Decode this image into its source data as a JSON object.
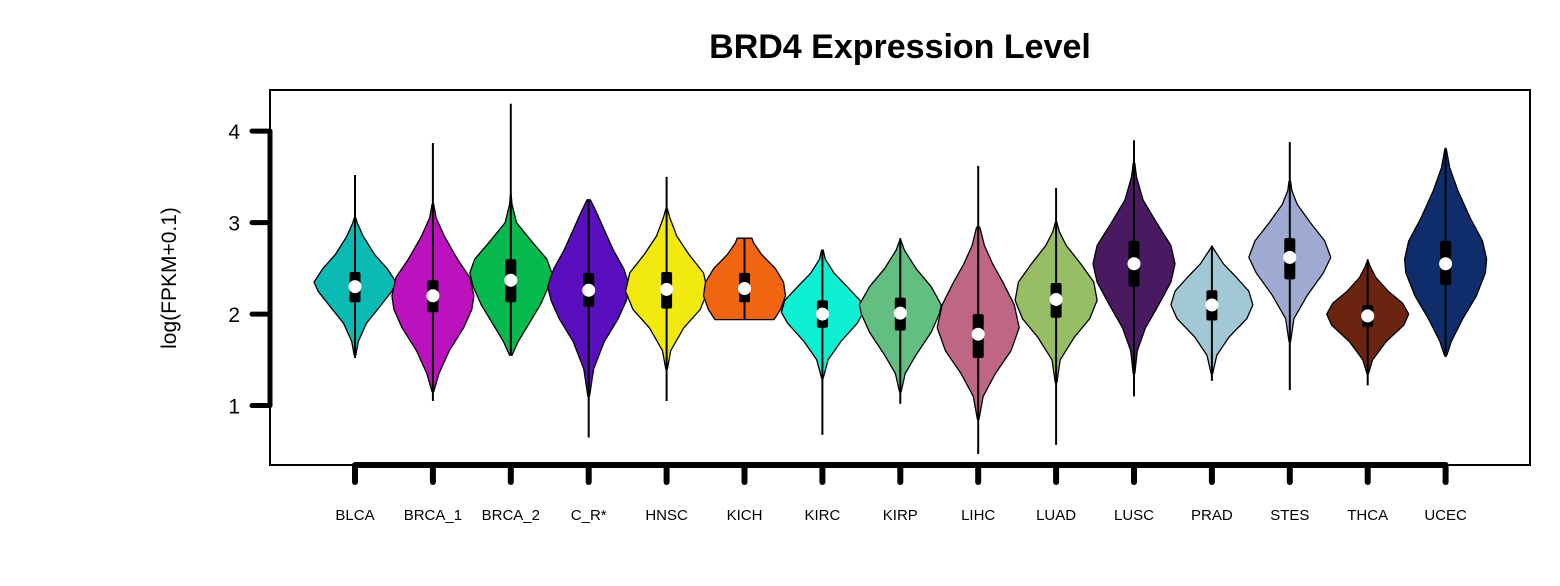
{
  "chart_data": {
    "type": "violin",
    "title": "BRD4 Expression Level",
    "xlabel": "",
    "ylabel": "log(FPKM+0.1)",
    "ylim": [
      0.35,
      4.45
    ],
    "yticks": [
      1,
      2,
      3,
      4
    ],
    "grid": false,
    "categories": [
      "BLCA",
      "BRCA_1",
      "BRCA_2",
      "C_R*",
      "HNSC",
      "KICH",
      "KIRC",
      "KIRP",
      "LIHC",
      "LUAD",
      "LUSC",
      "PRAD",
      "STES",
      "THCA",
      "UCEC"
    ],
    "series": [
      {
        "category": "BLCA",
        "color": "#0BBAB5",
        "min": 1.52,
        "max": 3.52,
        "q1": 2.13,
        "median": 2.3,
        "q3": 2.46,
        "violin": [
          [
            1.55,
            0.02
          ],
          [
            1.7,
            0.08
          ],
          [
            1.9,
            0.28
          ],
          [
            2.1,
            0.64
          ],
          [
            2.25,
            0.9
          ],
          [
            2.35,
            1.0
          ],
          [
            2.5,
            0.78
          ],
          [
            2.65,
            0.48
          ],
          [
            2.85,
            0.2
          ],
          [
            3.0,
            0.05
          ],
          [
            3.05,
            0.02
          ]
        ]
      },
      {
        "category": "BRCA_1",
        "color": "#BB12BE",
        "min": 1.05,
        "max": 3.87,
        "q1": 2.02,
        "median": 2.2,
        "q3": 2.37,
        "violin": [
          [
            1.15,
            0.02
          ],
          [
            1.35,
            0.15
          ],
          [
            1.6,
            0.4
          ],
          [
            1.85,
            0.75
          ],
          [
            2.05,
            0.95
          ],
          [
            2.2,
            1.0
          ],
          [
            2.4,
            0.9
          ],
          [
            2.6,
            0.6
          ],
          [
            2.85,
            0.28
          ],
          [
            3.05,
            0.08
          ],
          [
            3.2,
            0.02
          ]
        ]
      },
      {
        "category": "BRCA_2",
        "color": "#06B94F",
        "min": 1.55,
        "max": 4.3,
        "q1": 2.13,
        "median": 2.37,
        "q3": 2.6,
        "violin": [
          [
            1.55,
            0.03
          ],
          [
            1.7,
            0.18
          ],
          [
            1.9,
            0.45
          ],
          [
            2.1,
            0.72
          ],
          [
            2.3,
            0.92
          ],
          [
            2.45,
            1.0
          ],
          [
            2.6,
            0.88
          ],
          [
            2.8,
            0.5
          ],
          [
            3.0,
            0.14
          ],
          [
            3.2,
            0.03
          ],
          [
            3.3,
            0.01
          ]
        ]
      },
      {
        "category": "C_R*",
        "color": "#5A0FBE",
        "min": 0.65,
        "max": 3.25,
        "q1": 2.08,
        "median": 2.26,
        "q3": 2.45,
        "violin": [
          [
            1.1,
            0.02
          ],
          [
            1.4,
            0.12
          ],
          [
            1.7,
            0.38
          ],
          [
            1.95,
            0.72
          ],
          [
            2.15,
            0.92
          ],
          [
            2.3,
            1.0
          ],
          [
            2.5,
            0.85
          ],
          [
            2.7,
            0.6
          ],
          [
            2.95,
            0.35
          ],
          [
            3.15,
            0.15
          ],
          [
            3.25,
            0.04
          ]
        ]
      },
      {
        "category": "HNSC",
        "color": "#F2EA0E",
        "min": 1.05,
        "max": 3.5,
        "q1": 2.06,
        "median": 2.27,
        "q3": 2.46,
        "violin": [
          [
            1.4,
            0.02
          ],
          [
            1.6,
            0.1
          ],
          [
            1.85,
            0.42
          ],
          [
            2.05,
            0.82
          ],
          [
            2.25,
            1.0
          ],
          [
            2.45,
            0.9
          ],
          [
            2.65,
            0.55
          ],
          [
            2.85,
            0.25
          ],
          [
            3.05,
            0.08
          ],
          [
            3.15,
            0.02
          ]
        ]
      },
      {
        "category": "KICH",
        "color": "#F06412",
        "min": 1.94,
        "max": 2.83,
        "q1": 2.13,
        "median": 2.28,
        "q3": 2.45,
        "violin": [
          [
            1.94,
            0.72
          ],
          [
            2.05,
            0.88
          ],
          [
            2.2,
            1.0
          ],
          [
            2.35,
            0.95
          ],
          [
            2.5,
            0.75
          ],
          [
            2.65,
            0.42
          ],
          [
            2.78,
            0.22
          ],
          [
            2.83,
            0.18
          ]
        ]
      },
      {
        "category": "KIRC",
        "color": "#0EF0D2",
        "min": 0.68,
        "max": 2.7,
        "q1": 1.85,
        "median": 2.0,
        "q3": 2.15,
        "violin": [
          [
            1.3,
            0.02
          ],
          [
            1.5,
            0.14
          ],
          [
            1.7,
            0.45
          ],
          [
            1.9,
            0.85
          ],
          [
            2.02,
            1.0
          ],
          [
            2.15,
            0.92
          ],
          [
            2.3,
            0.6
          ],
          [
            2.45,
            0.28
          ],
          [
            2.6,
            0.07
          ],
          [
            2.7,
            0.02
          ]
        ]
      },
      {
        "category": "KIRP",
        "color": "#63BE82",
        "min": 1.02,
        "max": 2.83,
        "q1": 1.82,
        "median": 2.01,
        "q3": 2.18,
        "violin": [
          [
            1.15,
            0.02
          ],
          [
            1.35,
            0.12
          ],
          [
            1.55,
            0.38
          ],
          [
            1.8,
            0.75
          ],
          [
            2.0,
            0.95
          ],
          [
            2.1,
            1.0
          ],
          [
            2.3,
            0.75
          ],
          [
            2.5,
            0.38
          ],
          [
            2.7,
            0.1
          ],
          [
            2.8,
            0.02
          ]
        ]
      },
      {
        "category": "LIHC",
        "color": "#BE6684",
        "min": 0.47,
        "max": 3.62,
        "q1": 1.52,
        "median": 1.78,
        "q3": 2.0,
        "violin": [
          [
            0.85,
            0.02
          ],
          [
            1.1,
            0.12
          ],
          [
            1.35,
            0.42
          ],
          [
            1.6,
            0.8
          ],
          [
            1.85,
            1.0
          ],
          [
            2.1,
            0.88
          ],
          [
            2.35,
            0.6
          ],
          [
            2.55,
            0.35
          ],
          [
            2.75,
            0.15
          ],
          [
            2.95,
            0.04
          ]
        ]
      },
      {
        "category": "LUAD",
        "color": "#97BE64",
        "min": 0.57,
        "max": 3.38,
        "q1": 1.96,
        "median": 2.16,
        "q3": 2.34,
        "violin": [
          [
            1.25,
            0.02
          ],
          [
            1.5,
            0.1
          ],
          [
            1.75,
            0.45
          ],
          [
            1.95,
            0.82
          ],
          [
            2.15,
            1.0
          ],
          [
            2.35,
            0.92
          ],
          [
            2.55,
            0.6
          ],
          [
            2.75,
            0.25
          ],
          [
            2.9,
            0.08
          ],
          [
            3.0,
            0.02
          ]
        ]
      },
      {
        "category": "LUSC",
        "color": "#491A62",
        "min": 1.1,
        "max": 3.9,
        "q1": 2.3,
        "median": 2.55,
        "q3": 2.8,
        "violin": [
          [
            1.35,
            0.02
          ],
          [
            1.6,
            0.08
          ],
          [
            1.85,
            0.28
          ],
          [
            2.1,
            0.6
          ],
          [
            2.35,
            0.9
          ],
          [
            2.55,
            1.0
          ],
          [
            2.75,
            0.9
          ],
          [
            3.0,
            0.55
          ],
          [
            3.25,
            0.22
          ],
          [
            3.5,
            0.06
          ],
          [
            3.65,
            0.02
          ]
        ]
      },
      {
        "category": "PRAD",
        "color": "#A2C8D6",
        "min": 1.27,
        "max": 2.75,
        "q1": 1.93,
        "median": 2.1,
        "q3": 2.26,
        "violin": [
          [
            1.35,
            0.02
          ],
          [
            1.55,
            0.12
          ],
          [
            1.75,
            0.42
          ],
          [
            1.95,
            0.85
          ],
          [
            2.1,
            1.0
          ],
          [
            2.25,
            0.9
          ],
          [
            2.4,
            0.6
          ],
          [
            2.55,
            0.28
          ],
          [
            2.7,
            0.06
          ],
          [
            2.73,
            0.02
          ]
        ]
      },
      {
        "category": "STES",
        "color": "#9EAAD2",
        "min": 1.17,
        "max": 3.88,
        "q1": 2.38,
        "median": 2.62,
        "q3": 2.83,
        "violin": [
          [
            1.7,
            0.02
          ],
          [
            1.95,
            0.1
          ],
          [
            2.2,
            0.42
          ],
          [
            2.45,
            0.82
          ],
          [
            2.62,
            1.0
          ],
          [
            2.8,
            0.85
          ],
          [
            3.0,
            0.5
          ],
          [
            3.2,
            0.18
          ],
          [
            3.35,
            0.05
          ],
          [
            3.45,
            0.02
          ]
        ]
      },
      {
        "category": "THCA",
        "color": "#6B2410",
        "min": 1.22,
        "max": 2.6,
        "q1": 1.86,
        "median": 1.98,
        "q3": 2.1,
        "violin": [
          [
            1.35,
            0.02
          ],
          [
            1.5,
            0.12
          ],
          [
            1.7,
            0.45
          ],
          [
            1.88,
            0.88
          ],
          [
            2.0,
            1.0
          ],
          [
            2.12,
            0.85
          ],
          [
            2.25,
            0.5
          ],
          [
            2.4,
            0.2
          ],
          [
            2.52,
            0.06
          ],
          [
            2.57,
            0.02
          ]
        ]
      },
      {
        "category": "UCEC",
        "color": "#0F2C6B",
        "min": 1.53,
        "max": 3.82,
        "q1": 2.32,
        "median": 2.55,
        "q3": 2.8,
        "violin": [
          [
            1.55,
            0.03
          ],
          [
            1.7,
            0.14
          ],
          [
            1.95,
            0.42
          ],
          [
            2.2,
            0.75
          ],
          [
            2.45,
            0.97
          ],
          [
            2.6,
            1.0
          ],
          [
            2.8,
            0.9
          ],
          [
            3.05,
            0.6
          ],
          [
            3.35,
            0.3
          ],
          [
            3.6,
            0.1
          ],
          [
            3.8,
            0.02
          ]
        ]
      }
    ]
  }
}
